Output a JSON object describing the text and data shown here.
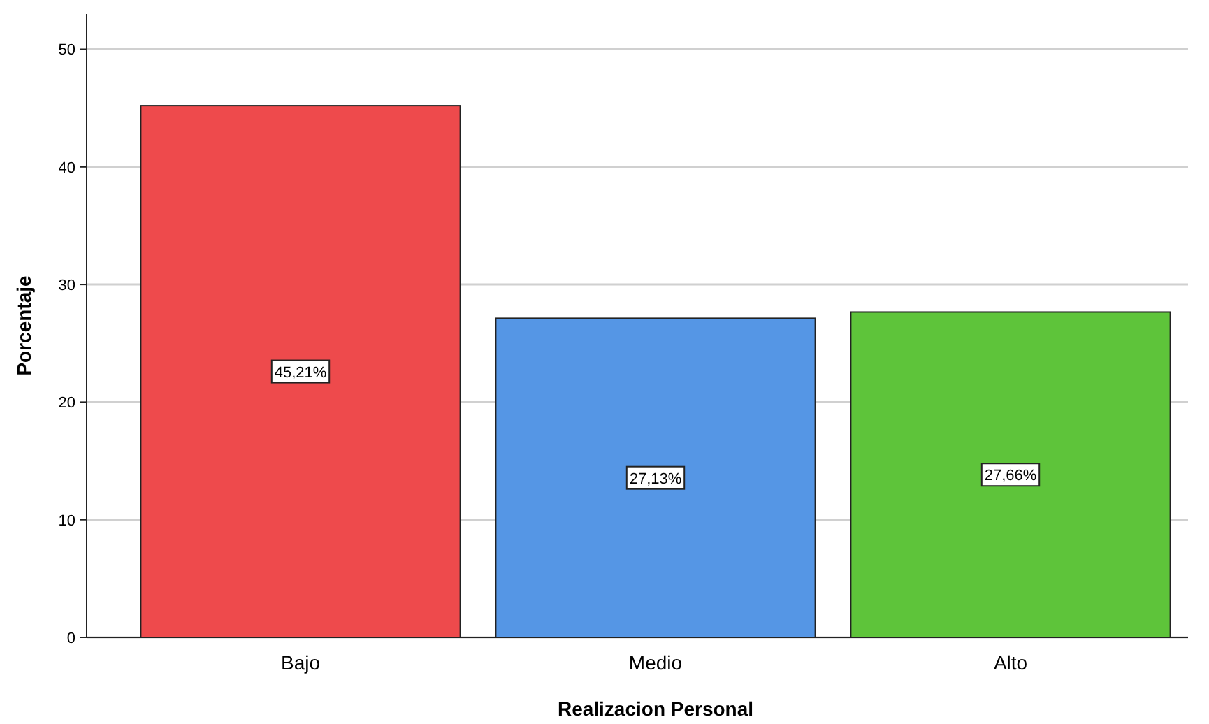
{
  "chart_data": {
    "type": "bar",
    "xlabel": "Realizacion Personal",
    "ylabel": "Porcentaje",
    "categories": [
      "Bajo",
      "Medio",
      "Alto"
    ],
    "values": [
      45.21,
      27.13,
      27.66
    ],
    "colors": [
      "#ee4a4c",
      "#5596e5",
      "#5ec43a"
    ],
    "value_labels": [
      "45,21%",
      "27,13%",
      "27,66%"
    ],
    "ylim": [
      0,
      53
    ],
    "yticks": [
      0,
      10,
      20,
      30,
      40,
      50
    ],
    "grid": "y"
  }
}
